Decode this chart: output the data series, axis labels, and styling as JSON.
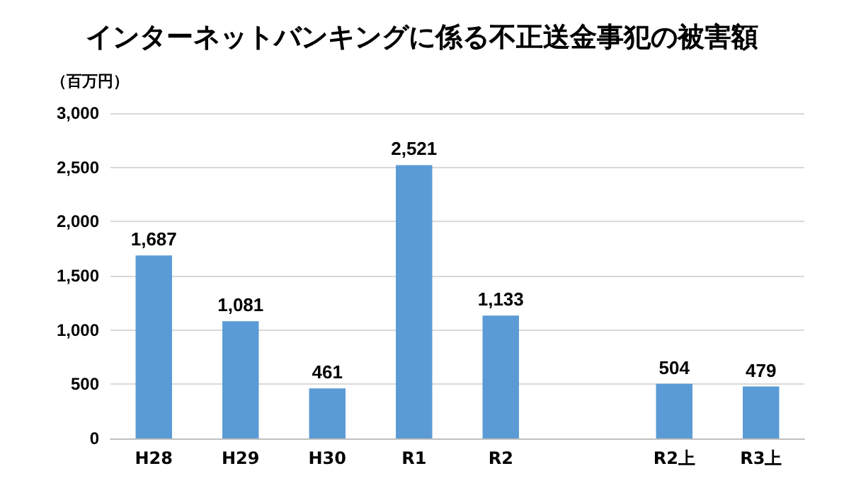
{
  "chart_data": {
    "type": "bar",
    "title": "インターネットバンキングに係る不正送金事犯の被害額",
    "ylabel": "（百万円）",
    "categories": [
      "H28",
      "H29",
      "H30",
      "R1",
      "R2",
      null,
      "R2上",
      "R3上"
    ],
    "values": [
      1687,
      1081,
      461,
      2521,
      1133,
      null,
      504,
      479
    ],
    "value_labels": [
      "1,687",
      "1,081",
      "461",
      "2,521",
      "1,133",
      null,
      "504",
      "479"
    ],
    "color": "#5b9bd5",
    "ylim": [
      0,
      3000
    ],
    "yticks": [
      0,
      500,
      {
        "value": 1000,
        "label": "1,000"
      },
      {
        "value": 1500,
        "label": "1,500"
      },
      {
        "value": 2000,
        "label": "2,000"
      },
      {
        "value": 2500,
        "label": "2,500"
      },
      {
        "value": 3000,
        "label": "3,000"
      }
    ],
    "grid": "y"
  }
}
